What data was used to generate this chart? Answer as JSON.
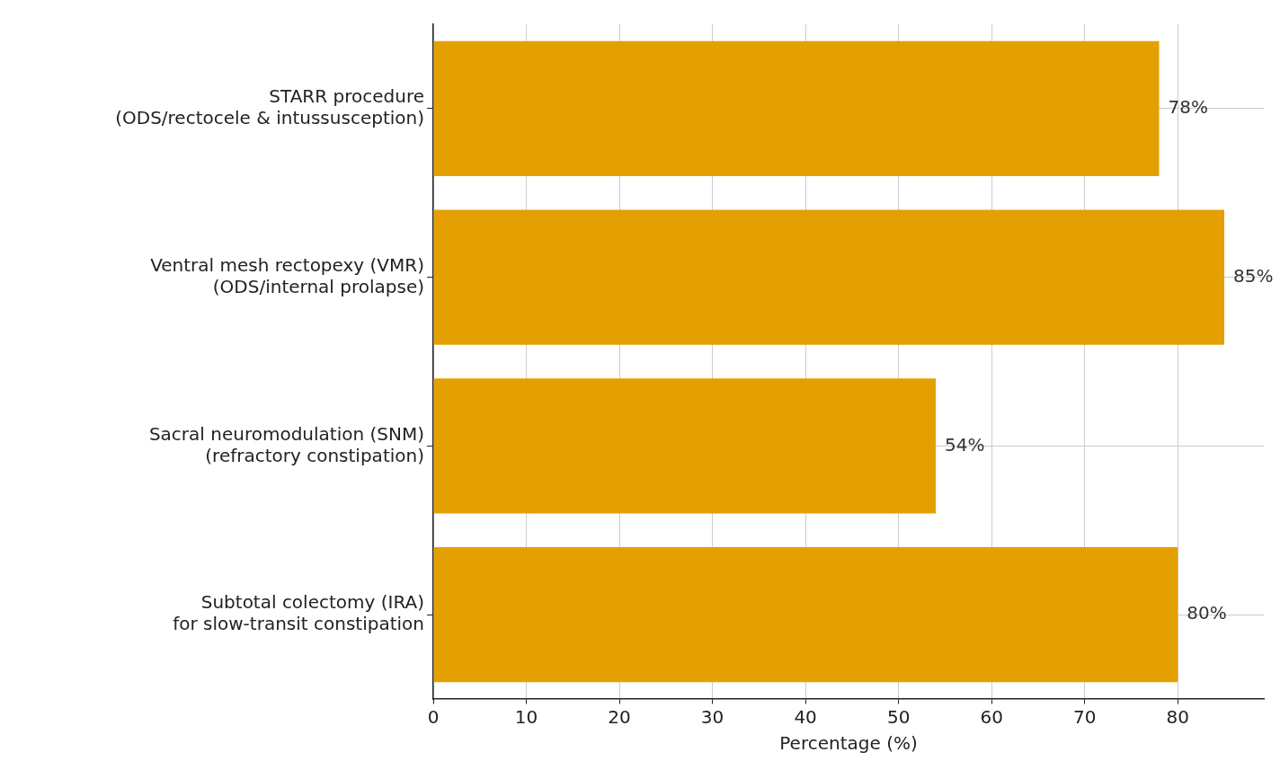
{
  "chart_data": {
    "type": "bar",
    "orientation": "horizontal",
    "xlabel": "Percentage (%)",
    "categories": [
      "STARR procedure\n(ODS/rectocele & intussusception)",
      "Ventral mesh rectopexy (VMR)\n(ODS/internal prolapse)",
      "Sacral neuromodulation (SNM)\n(refractory constipation)",
      "Subtotal colectomy (IRA)\nfor slow-transit constipation"
    ],
    "values": [
      78,
      85,
      54,
      80
    ],
    "value_labels": [
      "78%",
      "85%",
      "54%",
      "80%"
    ],
    "color": "#e3a000",
    "xlim": [
      0,
      89.25
    ],
    "xticks": [
      0,
      10,
      20,
      30,
      40,
      50,
      60,
      70,
      80
    ],
    "grid": true,
    "legend": false
  }
}
